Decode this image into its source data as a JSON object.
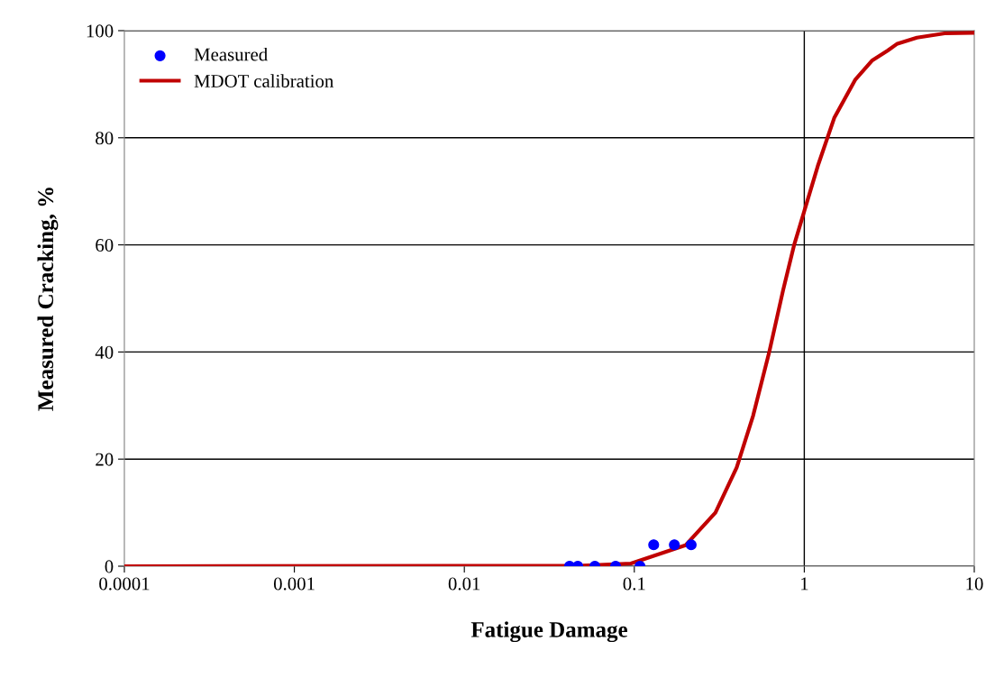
{
  "chart_data": {
    "type": "scatter",
    "xlabel": "Fatigue Damage",
    "ylabel": "Measured Cracking, %",
    "log": "x",
    "xlim": [
      0.0001,
      10
    ],
    "xticks": [
      0.0001,
      0.001,
      0.01,
      0.1,
      1,
      10
    ],
    "ylim": [
      0,
      100
    ],
    "yticks": [
      0,
      20,
      40,
      60,
      80,
      100
    ],
    "grid": "y",
    "legend": "top left",
    "ref_lines": [
      {
        "axis": "x",
        "value": 1,
        "label": null,
        "color": "#000000"
      }
    ],
    "series": [
      {
        "name": "Measured",
        "color": "#0000ff",
        "marker": "circle",
        "x": [
          0.0416,
          0.0465,
          0.0586,
          0.0776,
          0.108,
          0.13,
          0.172,
          0.216
        ],
        "values": [
          0,
          0,
          0,
          0,
          0,
          4,
          4,
          4
        ]
      },
      {
        "name": "MDOT calibration",
        "type": "line",
        "color": "#c00000",
        "marker": "none",
        "line_style": "solid",
        "x": [
          0.0001,
          0.05,
          0.0955,
          0.2,
          0.3,
          0.4,
          0.5,
          0.62,
          0.75,
          0.87,
          1.0,
          1.2,
          1.5,
          2.0,
          2.5,
          3.1,
          3.5,
          4.6,
          6.7,
          10
        ],
        "values": [
          0,
          0.1,
          0.5,
          3.9,
          10.0,
          18.4,
          28.1,
          39.8,
          51.5,
          59.9,
          66.3,
          74.7,
          83.7,
          90.9,
          94.4,
          96.3,
          97.5,
          98.7,
          99.5,
          99.6
        ]
      }
    ]
  }
}
